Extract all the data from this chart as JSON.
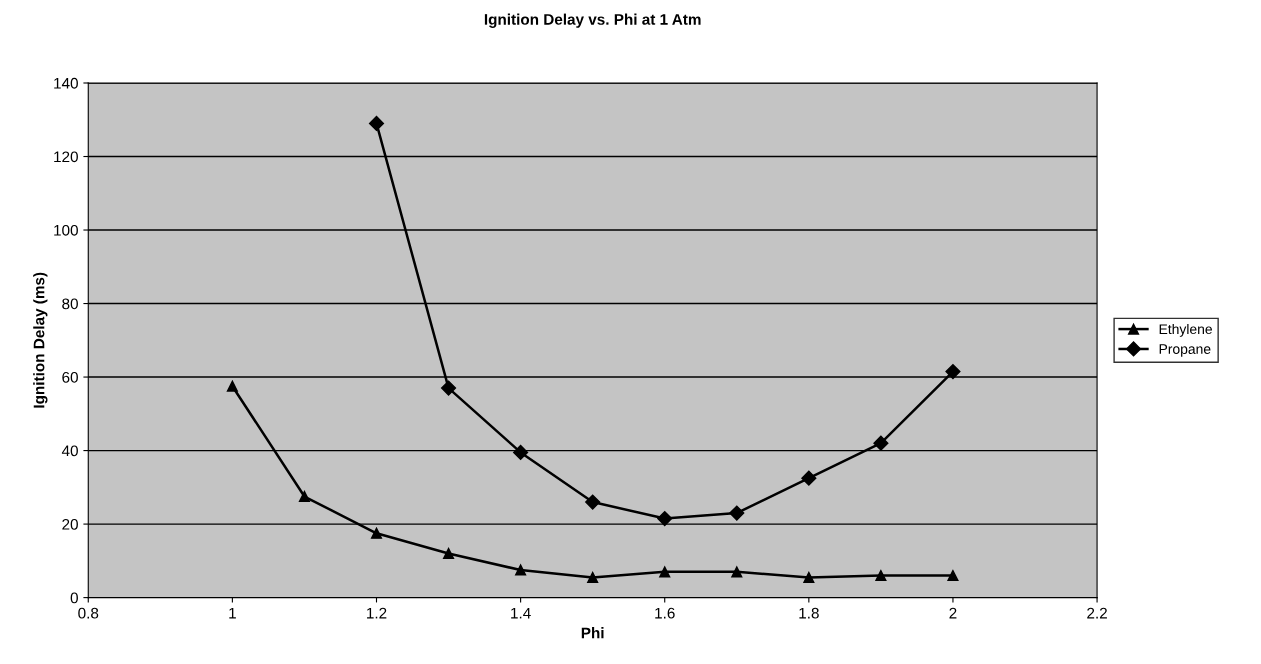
{
  "chart_data": {
    "type": "line",
    "title": "Ignition Delay vs. Phi at 1 Atm",
    "xlabel": "Phi",
    "ylabel": "Ignition Delay (ms)",
    "x": [
      1.0,
      1.1,
      1.2,
      1.3,
      1.4,
      1.5,
      1.6,
      1.7,
      1.8,
      1.9,
      2.0
    ],
    "series": [
      {
        "name": "Ethylene",
        "color": "#000000",
        "marker": "triangle",
        "values": [
          57.5,
          27.5,
          17.5,
          12,
          7.5,
          5.5,
          7,
          7,
          5.5,
          6,
          6
        ]
      },
      {
        "name": "Propane",
        "color": "#000000",
        "marker": "diamond",
        "values": [
          null,
          null,
          129,
          57,
          39.5,
          26,
          21.5,
          23,
          32.5,
          42,
          61.5
        ]
      }
    ],
    "xlim": [
      0.8,
      2.2
    ],
    "xticks": [
      0.8,
      1,
      1.2,
      1.4,
      1.6,
      1.8,
      2,
      2.2
    ],
    "ylim": [
      0,
      140
    ],
    "yticks": [
      0,
      20,
      40,
      60,
      80,
      100,
      120,
      140
    ],
    "grid": "y",
    "legend": "right",
    "line_style": "solid"
  }
}
